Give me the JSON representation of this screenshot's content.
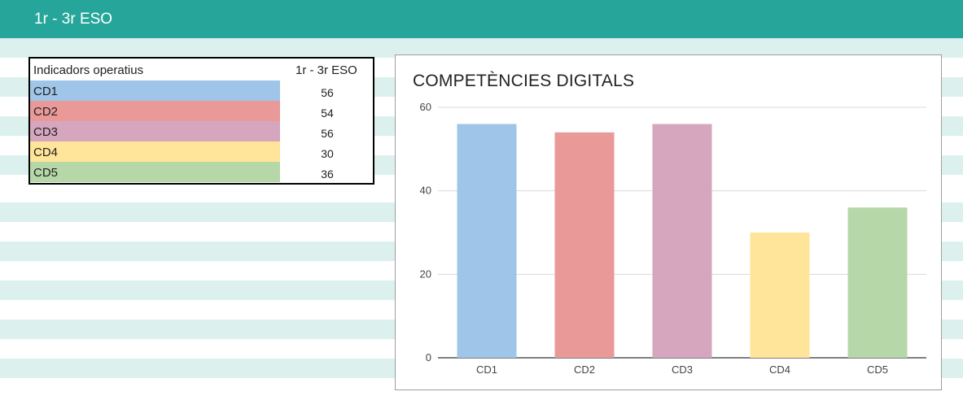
{
  "header": {
    "title": "1r - 3r ESO"
  },
  "table": {
    "col_indicator": "Indicadors operatius",
    "col_group": "1r - 3r ESO",
    "rows": [
      {
        "label": "CD1",
        "value": "56",
        "color": "#9fc5e8"
      },
      {
        "label": "CD2",
        "value": "54",
        "color": "#ea9999"
      },
      {
        "label": "CD3",
        "value": "56",
        "color": "#d5a6bd"
      },
      {
        "label": "CD4",
        "value": "30",
        "color": "#ffe599"
      },
      {
        "label": "CD5",
        "value": "36",
        "color": "#b6d7a8"
      }
    ]
  },
  "chart_data": {
    "type": "bar",
    "title": "COMPETÈNCIES DIGITALS",
    "categories": [
      "CD1",
      "CD2",
      "CD3",
      "CD4",
      "CD5"
    ],
    "values": [
      56,
      54,
      56,
      30,
      36
    ],
    "colors": [
      "#9fc5e8",
      "#ea9999",
      "#d5a6bd",
      "#ffe599",
      "#b6d7a8"
    ],
    "ylim": [
      0,
      60
    ],
    "yticks": [
      0,
      20,
      40,
      60
    ],
    "grid": true,
    "legend": "none"
  }
}
